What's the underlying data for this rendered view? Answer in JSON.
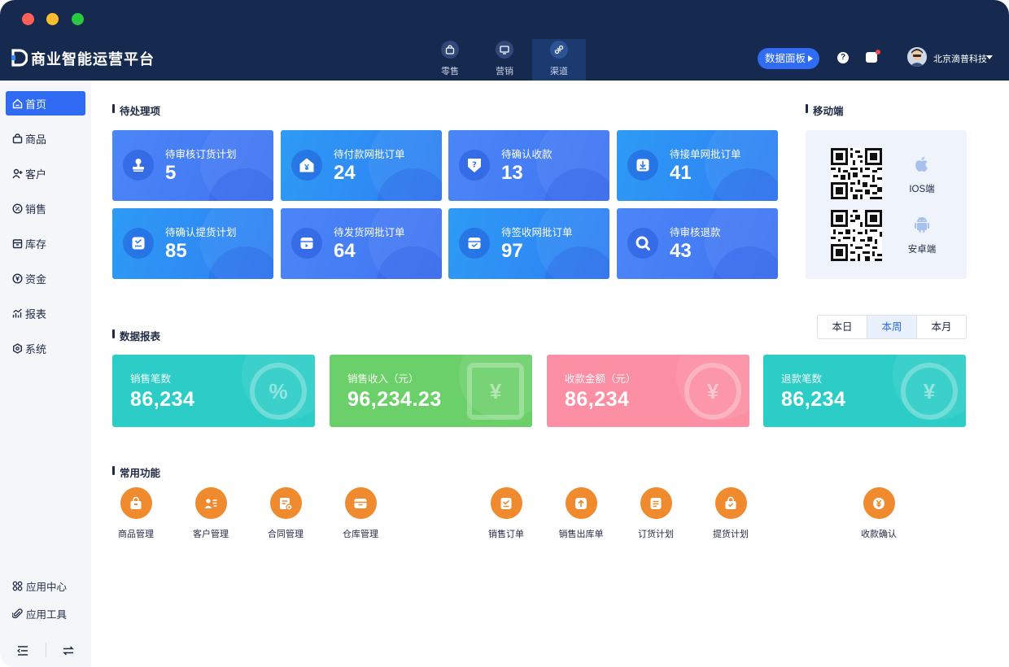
{
  "app": {
    "title": "商业智能运营平台"
  },
  "nav": {
    "tabs": [
      {
        "label": "零售"
      },
      {
        "label": "营销"
      },
      {
        "label": "渠道"
      }
    ]
  },
  "header": {
    "dashboard_button": "数据面板",
    "help": "?",
    "company": "北京滴普科技"
  },
  "sidebar": {
    "items": [
      {
        "label": "首页",
        "icon": "home-icon"
      },
      {
        "label": "商品",
        "icon": "bag-icon"
      },
      {
        "label": "客户",
        "icon": "user-add-icon"
      },
      {
        "label": "销售",
        "icon": "percent-icon"
      },
      {
        "label": "库存",
        "icon": "box-icon"
      },
      {
        "label": "资金",
        "icon": "yen-icon"
      },
      {
        "label": "报表",
        "icon": "chart-icon"
      },
      {
        "label": "系统",
        "icon": "settings-icon"
      }
    ],
    "bottom": [
      {
        "label": "应用中心"
      },
      {
        "label": "应用工具"
      }
    ]
  },
  "pending": {
    "title": "待处理项",
    "cards": [
      {
        "label": "待审核订货计划",
        "value": "5"
      },
      {
        "label": "待付款网批订单",
        "value": "24"
      },
      {
        "label": "待确认收款",
        "value": "13"
      },
      {
        "label": "待接单网批订单",
        "value": "41"
      },
      {
        "label": "待确认提货计划",
        "value": "85"
      },
      {
        "label": "待发货网批订单",
        "value": "64"
      },
      {
        "label": "待签收网批订单",
        "value": "97"
      },
      {
        "label": "待审核退款",
        "value": "43"
      }
    ]
  },
  "mobile": {
    "title": "移动端",
    "ios_label": "IOS端",
    "android_label": "安卓端"
  },
  "report": {
    "title": "数据报表",
    "periods": [
      {
        "label": "本日"
      },
      {
        "label": "本周"
      },
      {
        "label": "本月"
      }
    ],
    "active_period": "本周",
    "stats": [
      {
        "label": "销售笔数",
        "value": "86,234",
        "color": "#2ccdc6"
      },
      {
        "label": "销售收入（元）",
        "value": "96,234.23",
        "color": "#6cd06a"
      },
      {
        "label": "收款金额（元）",
        "value": "86,234",
        "color": "#fc8fa3"
      },
      {
        "label": "退款笔数",
        "value": "86,234",
        "color": "#2ccdc6"
      }
    ]
  },
  "functions": {
    "title": "常用功能",
    "items": [
      {
        "label": "商品管理"
      },
      {
        "label": "客户管理"
      },
      {
        "label": "合同管理"
      },
      {
        "label": "仓库管理"
      },
      {
        "label": "销售订单"
      },
      {
        "label": "销售出库单"
      },
      {
        "label": "订货计划"
      },
      {
        "label": "提货计划"
      },
      {
        "label": "收款确认"
      }
    ]
  }
}
